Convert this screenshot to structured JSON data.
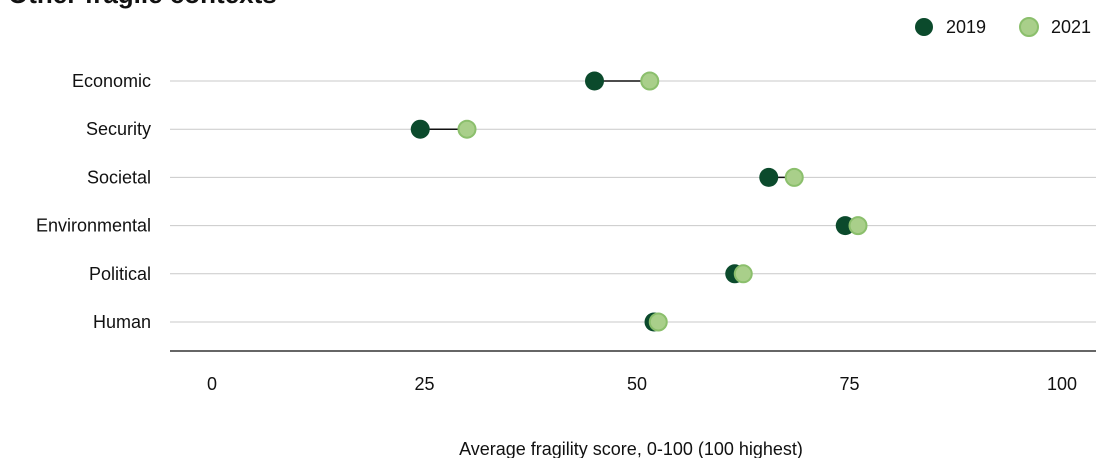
{
  "chart_data": {
    "type": "dumbbell",
    "title": "Other fragile contexts",
    "xlabel": "Average fragility score, 0-100 (100 highest)",
    "xlim": [
      0,
      100
    ],
    "x_ticks": [
      "0",
      "25",
      "50",
      "75",
      "100"
    ],
    "categories": [
      "Economic",
      "Security",
      "Societal",
      "Environmental",
      "Political",
      "Human"
    ],
    "series": [
      {
        "name": "2019",
        "color": "#0b4a2c",
        "values": [
          45,
          24.5,
          65.5,
          74.5,
          61.5,
          52
        ]
      },
      {
        "name": "2021",
        "color": "#a9cf8a",
        "values": [
          51.5,
          30,
          68.5,
          76,
          62.5,
          52.5
        ]
      }
    ],
    "legend": "top-right",
    "grid": true
  }
}
